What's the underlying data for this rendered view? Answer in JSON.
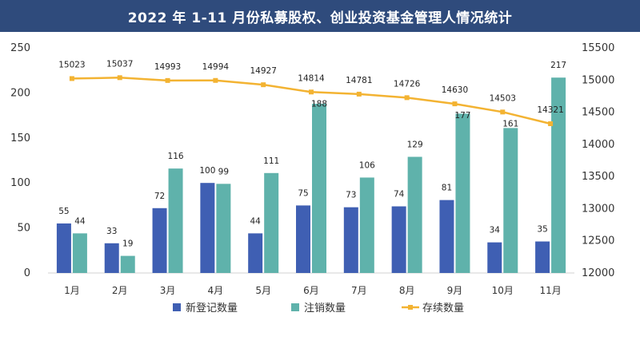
{
  "title": "2022 年 1-11 月份私募股权、创业投资基金管理人情况统计",
  "colors": {
    "header_bg": "#2f4b7c",
    "new": "#3f5fb3",
    "cancel": "#5fb2ab",
    "stock": "#f3b332"
  },
  "chart_data": {
    "type": "bar",
    "title": "2022 年 1-11 月份私募股权、创业投资基金管理人情况统计",
    "categories": [
      "1月",
      "2月",
      "3月",
      "4月",
      "5月",
      "6月",
      "7月",
      "8月",
      "9月",
      "10月",
      "11月"
    ],
    "series": [
      {
        "name": "新登记数量",
        "type": "bar",
        "axis": "left",
        "values": [
          55,
          33,
          72,
          100,
          44,
          75,
          73,
          74,
          81,
          34,
          35
        ]
      },
      {
        "name": "注销数量",
        "type": "bar",
        "axis": "left",
        "values": [
          44,
          19,
          116,
          99,
          111,
          188,
          106,
          129,
          177,
          161,
          217
        ]
      },
      {
        "name": "存续数量",
        "type": "line",
        "axis": "right",
        "values": [
          15023,
          15037,
          14993,
          14994,
          14927,
          14814,
          14781,
          14726,
          14630,
          14503,
          14321
        ]
      }
    ],
    "y_left": {
      "range": [
        0,
        250
      ],
      "ticks": [
        0,
        50,
        100,
        150,
        200,
        250
      ]
    },
    "y_right": {
      "range": [
        12000,
        15500
      ],
      "ticks": [
        12000,
        12500,
        13000,
        13500,
        14000,
        14500,
        15000,
        15500
      ]
    },
    "legend_position": "bottom",
    "grid": false
  }
}
